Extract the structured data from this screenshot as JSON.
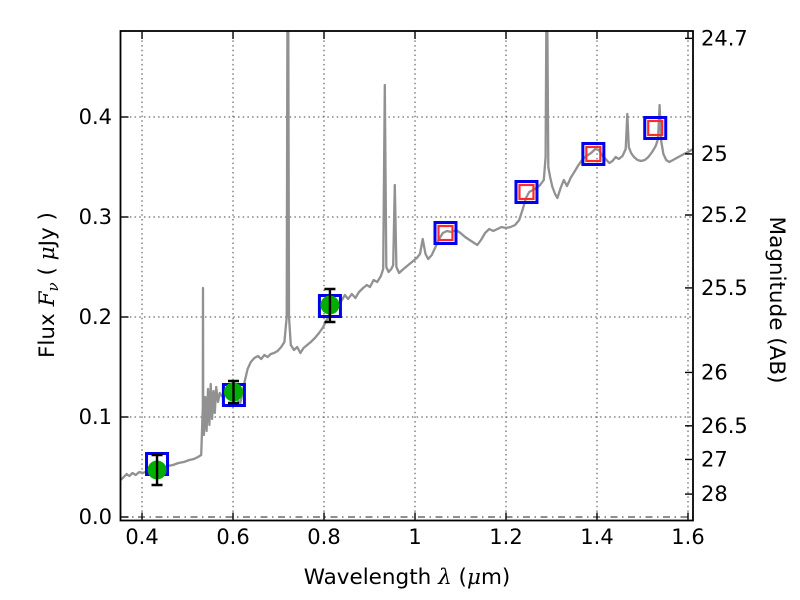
{
  "chart_data": {
    "type": "line",
    "title": "",
    "xlabel_parts": [
      {
        "t": "Wavelength  ",
        "it": false
      },
      {
        "t": "λ",
        "it": true
      },
      {
        "t": " (",
        "it": false
      },
      {
        "t": "μ",
        "it": true
      },
      {
        "t": "m)",
        "it": false
      }
    ],
    "ylabel_left_parts": [
      {
        "t": "Flux  ",
        "it": false
      },
      {
        "t": "F",
        "it": true
      },
      {
        "t": "ν",
        "it": true,
        "sub": true
      },
      {
        "t": "  ( ",
        "it": false
      },
      {
        "t": "μ",
        "it": true
      },
      {
        "t": "Jy )",
        "it": false
      }
    ],
    "ylabel_right": "Magnitude (AB)",
    "xlim": [
      0.3527,
      1.611
    ],
    "ylim_flux": [
      -0.0035,
      0.486
    ],
    "x_ticks": [
      {
        "v": 0.4,
        "label": "0.4"
      },
      {
        "v": 0.6,
        "label": "0.6"
      },
      {
        "v": 0.8,
        "label": "0.8"
      },
      {
        "v": 1.0,
        "label": "1"
      },
      {
        "v": 1.2,
        "label": "1.2"
      },
      {
        "v": 1.4,
        "label": "1.4"
      },
      {
        "v": 1.6,
        "label": "1.6"
      }
    ],
    "flux_ticks": [
      {
        "v": 0.0,
        "label": "0.0"
      },
      {
        "v": 0.1,
        "label": "0.1"
      },
      {
        "v": 0.2,
        "label": "0.2"
      },
      {
        "v": 0.3,
        "label": "0.3"
      },
      {
        "v": 0.4,
        "label": "0.4"
      }
    ],
    "mag_ticks": [
      {
        "v": 24.7,
        "label": "24.7"
      },
      {
        "v": 25.0,
        "label": "25"
      },
      {
        "v": 25.2,
        "label": "25.2"
      },
      {
        "v": 25.5,
        "label": "25.5"
      },
      {
        "v": 26.0,
        "label": "26"
      },
      {
        "v": 26.5,
        "label": "26.5"
      },
      {
        "v": 27.0,
        "label": "27"
      },
      {
        "v": 28.0,
        "label": "28"
      }
    ],
    "mag_zeropoint_ujy": 23.9,
    "grid": {
      "x": "dotted",
      "flux": "dotted",
      "zero_line": "dash-dot",
      "legend": "none"
    },
    "colors": {
      "spectrum": "#919191",
      "model_square": "#0000ee",
      "model_square_inner": "#ff2b2b",
      "observed_point": "#00ad00",
      "error_bar": "#000000",
      "grid": "#444444",
      "spine": "#000000"
    },
    "series": [
      {
        "name": "model-spectrum",
        "type": "line",
        "points": [
          [
            0.353,
            0.037
          ],
          [
            0.36,
            0.04
          ],
          [
            0.366,
            0.043
          ],
          [
            0.372,
            0.041
          ],
          [
            0.379,
            0.044
          ],
          [
            0.386,
            0.042
          ],
          [
            0.394,
            0.045
          ],
          [
            0.402,
            0.044
          ],
          [
            0.412,
            0.046
          ],
          [
            0.422,
            0.046
          ],
          [
            0.433,
            0.048
          ],
          [
            0.444,
            0.049
          ],
          [
            0.456,
            0.051
          ],
          [
            0.468,
            0.052
          ],
          [
            0.48,
            0.054
          ],
          [
            0.492,
            0.055
          ],
          [
            0.504,
            0.057
          ],
          [
            0.514,
            0.058
          ],
          [
            0.523,
            0.06
          ],
          [
            0.53,
            0.062
          ],
          [
            0.5335,
            0.11
          ],
          [
            0.534,
            0.229
          ],
          [
            0.5345,
            0.11
          ],
          [
            0.536,
            0.082
          ],
          [
            0.539,
            0.12
          ],
          [
            0.542,
            0.086
          ],
          [
            0.545,
            0.128
          ],
          [
            0.548,
            0.092
          ],
          [
            0.551,
            0.133
          ],
          [
            0.554,
            0.098
          ],
          [
            0.557,
            0.126
          ],
          [
            0.56,
            0.104
          ],
          [
            0.563,
            0.13
          ],
          [
            0.567,
            0.115
          ],
          [
            0.571,
            0.124
          ],
          [
            0.577,
            0.12
          ],
          [
            0.584,
            0.123
          ],
          [
            0.591,
            0.125
          ],
          [
            0.598,
            0.126
          ],
          [
            0.605,
            0.123
          ],
          [
            0.611,
            0.117
          ],
          [
            0.615,
            0.112
          ],
          [
            0.62,
            0.122
          ],
          [
            0.626,
            0.136
          ],
          [
            0.632,
            0.148
          ],
          [
            0.639,
            0.155
          ],
          [
            0.647,
            0.159
          ],
          [
            0.655,
            0.161
          ],
          [
            0.662,
            0.158
          ],
          [
            0.669,
            0.162
          ],
          [
            0.676,
            0.16
          ],
          [
            0.683,
            0.163
          ],
          [
            0.69,
            0.164
          ],
          [
            0.698,
            0.166
          ],
          [
            0.706,
            0.17
          ],
          [
            0.713,
            0.175
          ],
          [
            0.718,
            0.2
          ],
          [
            0.7195,
            0.486
          ],
          [
            0.7215,
            0.486
          ],
          [
            0.723,
            0.2
          ],
          [
            0.727,
            0.172
          ],
          [
            0.734,
            0.167
          ],
          [
            0.741,
            0.17
          ],
          [
            0.748,
            0.164
          ],
          [
            0.755,
            0.169
          ],
          [
            0.763,
            0.172
          ],
          [
            0.771,
            0.175
          ],
          [
            0.78,
            0.179
          ],
          [
            0.789,
            0.184
          ],
          [
            0.797,
            0.189
          ],
          [
            0.806,
            0.197
          ],
          [
            0.814,
            0.205
          ],
          [
            0.822,
            0.208
          ],
          [
            0.83,
            0.212
          ],
          [
            0.838,
            0.216
          ],
          [
            0.846,
            0.222
          ],
          [
            0.853,
            0.218
          ],
          [
            0.861,
            0.223
          ],
          [
            0.869,
            0.219
          ],
          [
            0.877,
            0.225
          ],
          [
            0.886,
            0.229
          ],
          [
            0.894,
            0.232
          ],
          [
            0.901,
            0.23
          ],
          [
            0.909,
            0.237
          ],
          [
            0.917,
            0.235
          ],
          [
            0.925,
            0.241
          ],
          [
            0.93,
            0.248
          ],
          [
            0.9335,
            0.432
          ],
          [
            0.937,
            0.25
          ],
          [
            0.942,
            0.245
          ],
          [
            0.948,
            0.248
          ],
          [
            0.952,
            0.252
          ],
          [
            0.9555,
            0.332
          ],
          [
            0.959,
            0.25
          ],
          [
            0.965,
            0.244
          ],
          [
            0.972,
            0.247
          ],
          [
            0.98,
            0.25
          ],
          [
            0.988,
            0.253
          ],
          [
            0.996,
            0.256
          ],
          [
            1.004,
            0.259
          ],
          [
            1.011,
            0.263
          ],
          [
            1.017,
            0.278
          ],
          [
            1.023,
            0.263
          ],
          [
            1.029,
            0.258
          ],
          [
            1.037,
            0.262
          ],
          [
            1.045,
            0.27
          ],
          [
            1.053,
            0.278
          ],
          [
            1.061,
            0.284
          ],
          [
            1.07,
            0.286
          ],
          [
            1.08,
            0.285
          ],
          [
            1.09,
            0.287
          ],
          [
            1.1,
            0.284
          ],
          [
            1.11,
            0.28
          ],
          [
            1.12,
            0.277
          ],
          [
            1.13,
            0.274
          ],
          [
            1.137,
            0.272
          ],
          [
            1.145,
            0.277
          ],
          [
            1.154,
            0.284
          ],
          [
            1.163,
            0.288
          ],
          [
            1.172,
            0.286
          ],
          [
            1.181,
            0.288
          ],
          [
            1.19,
            0.29
          ],
          [
            1.2,
            0.289
          ],
          [
            1.21,
            0.29
          ],
          [
            1.22,
            0.292
          ],
          [
            1.229,
            0.297
          ],
          [
            1.237,
            0.308
          ],
          [
            1.244,
            0.319
          ],
          [
            1.251,
            0.325
          ],
          [
            1.259,
            0.327
          ],
          [
            1.267,
            0.329
          ],
          [
            1.275,
            0.332
          ],
          [
            1.283,
            0.337
          ],
          [
            1.287,
            0.36
          ],
          [
            1.2885,
            0.486
          ],
          [
            1.291,
            0.486
          ],
          [
            1.293,
            0.35
          ],
          [
            1.297,
            0.34
          ],
          [
            1.302,
            0.33
          ],
          [
            1.308,
            0.323
          ],
          [
            1.313,
            0.319
          ],
          [
            1.32,
            0.329
          ],
          [
            1.327,
            0.337
          ],
          [
            1.334,
            0.331
          ],
          [
            1.342,
            0.339
          ],
          [
            1.35,
            0.345
          ],
          [
            1.358,
            0.351
          ],
          [
            1.367,
            0.357
          ],
          [
            1.377,
            0.361
          ],
          [
            1.387,
            0.364
          ],
          [
            1.396,
            0.368
          ],
          [
            1.404,
            0.367
          ],
          [
            1.411,
            0.362
          ],
          [
            1.419,
            0.358
          ],
          [
            1.427,
            0.354
          ],
          [
            1.434,
            0.356
          ],
          [
            1.441,
            0.36
          ],
          [
            1.448,
            0.358
          ],
          [
            1.456,
            0.361
          ],
          [
            1.463,
            0.368
          ],
          [
            1.4665,
            0.403
          ],
          [
            1.47,
            0.37
          ],
          [
            1.475,
            0.364
          ],
          [
            1.481,
            0.36
          ],
          [
            1.489,
            0.357
          ],
          [
            1.497,
            0.356
          ],
          [
            1.505,
            0.357
          ],
          [
            1.513,
            0.36
          ],
          [
            1.521,
            0.365
          ],
          [
            1.529,
            0.371
          ],
          [
            1.534,
            0.378
          ],
          [
            1.5375,
            0.412
          ],
          [
            1.541,
            0.376
          ],
          [
            1.546,
            0.363
          ],
          [
            1.552,
            0.357
          ],
          [
            1.559,
            0.355
          ],
          [
            1.567,
            0.357
          ],
          [
            1.575,
            0.359
          ],
          [
            1.583,
            0.361
          ],
          [
            1.591,
            0.363
          ],
          [
            1.6,
            0.365
          ],
          [
            1.611,
            0.368
          ]
        ]
      },
      {
        "name": "model-photometry-blue-squares",
        "type": "open-square",
        "points": [
          [
            0.433,
            0.053
          ],
          [
            0.602,
            0.122
          ],
          [
            0.813,
            0.211
          ],
          [
            1.067,
            0.284
          ],
          [
            1.245,
            0.325
          ],
          [
            1.392,
            0.363
          ],
          [
            1.528,
            0.389
          ]
        ]
      },
      {
        "name": "model-photometry-red-squares",
        "type": "open-square-small",
        "points": [
          [
            1.067,
            0.284
          ],
          [
            1.245,
            0.325
          ],
          [
            1.392,
            0.363
          ],
          [
            1.528,
            0.389
          ]
        ]
      },
      {
        "name": "observed-photometry-green-circles",
        "type": "circle-errorbar",
        "points": [
          {
            "x": 0.433,
            "y": 0.047,
            "lo": 0.032,
            "hi": 0.062
          },
          {
            "x": 0.601,
            "y": 0.125,
            "lo": 0.114,
            "hi": 0.136
          },
          {
            "x": 0.813,
            "y": 0.212,
            "lo": 0.195,
            "hi": 0.228
          }
        ]
      }
    ]
  }
}
